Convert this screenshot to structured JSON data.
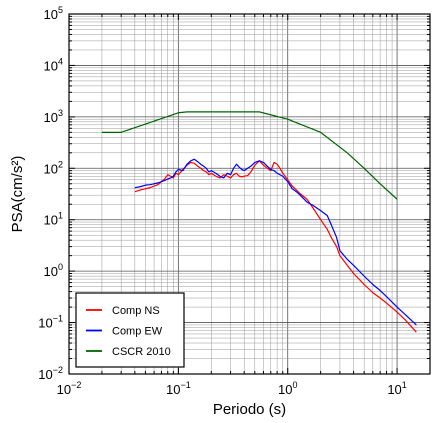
{
  "chart_data": {
    "type": "line",
    "title": "",
    "xlabel": "Periodo (s)",
    "ylabel": "PSA(cm/s²)",
    "xscale": "log",
    "yscale": "log",
    "xlim": [
      0.01,
      20
    ],
    "ylim": [
      0.01,
      100000
    ],
    "x_ticks": [
      {
        "base": "10",
        "exp": "−2",
        "value": 0.01
      },
      {
        "base": "10",
        "exp": "−1",
        "value": 0.1
      },
      {
        "base": "10",
        "exp": "0",
        "value": 1
      },
      {
        "base": "10",
        "exp": "1",
        "value": 10
      }
    ],
    "y_ticks": [
      {
        "base": "10",
        "exp": "−2",
        "value": 0.01
      },
      {
        "base": "10",
        "exp": "−1",
        "value": 0.1
      },
      {
        "base": "10",
        "exp": "0",
        "value": 1
      },
      {
        "base": "10",
        "exp": "1",
        "value": 10
      },
      {
        "base": "10",
        "exp": "2",
        "value": 100
      },
      {
        "base": "10",
        "exp": "3",
        "value": 1000
      },
      {
        "base": "10",
        "exp": "4",
        "value": 10000
      },
      {
        "base": "10",
        "exp": "5",
        "value": 100000
      }
    ],
    "grid": true,
    "legend_position": "bottom-left",
    "series": [
      {
        "name": "Comp NS",
        "color": "#ff0000",
        "points": [
          [
            0.04,
            35
          ],
          [
            0.045,
            38
          ],
          [
            0.05,
            40
          ],
          [
            0.055,
            42
          ],
          [
            0.06,
            45
          ],
          [
            0.065,
            48
          ],
          [
            0.07,
            55
          ],
          [
            0.075,
            62
          ],
          [
            0.08,
            75
          ],
          [
            0.085,
            70
          ],
          [
            0.09,
            65
          ],
          [
            0.095,
            80
          ],
          [
            0.1,
            75
          ],
          [
            0.11,
            95
          ],
          [
            0.12,
            115
          ],
          [
            0.13,
            130
          ],
          [
            0.14,
            125
          ],
          [
            0.15,
            110
          ],
          [
            0.16,
            100
          ],
          [
            0.17,
            90
          ],
          [
            0.18,
            85
          ],
          [
            0.19,
            75
          ],
          [
            0.2,
            80
          ],
          [
            0.22,
            70
          ],
          [
            0.24,
            65
          ],
          [
            0.26,
            75
          ],
          [
            0.28,
            70
          ],
          [
            0.3,
            65
          ],
          [
            0.32,
            75
          ],
          [
            0.34,
            80
          ],
          [
            0.36,
            70
          ],
          [
            0.38,
            68
          ],
          [
            0.4,
            70
          ],
          [
            0.43,
            72
          ],
          [
            0.46,
            85
          ],
          [
            0.5,
            115
          ],
          [
            0.55,
            140
          ],
          [
            0.6,
            115
          ],
          [
            0.65,
            100
          ],
          [
            0.7,
            90
          ],
          [
            0.75,
            130
          ],
          [
            0.8,
            120
          ],
          [
            0.85,
            100
          ],
          [
            0.9,
            80
          ],
          [
            1.0,
            60
          ],
          [
            1.1,
            45
          ],
          [
            1.2,
            38
          ],
          [
            1.3,
            32
          ],
          [
            1.5,
            25
          ],
          [
            1.7,
            17
          ],
          [
            2.0,
            10
          ],
          [
            2.3,
            6.5
          ],
          [
            2.5,
            4.5
          ],
          [
            2.8,
            3.0
          ],
          [
            3.0,
            2.0
          ],
          [
            3.5,
            1.3
          ],
          [
            4.0,
            0.9
          ],
          [
            5.0,
            0.55
          ],
          [
            6.0,
            0.38
          ],
          [
            7.0,
            0.3
          ],
          [
            8.0,
            0.24
          ],
          [
            10.0,
            0.16
          ],
          [
            12.0,
            0.11
          ],
          [
            15.0,
            0.065
          ]
        ]
      },
      {
        "name": "Comp EW",
        "color": "#0000ff",
        "points": [
          [
            0.04,
            42
          ],
          [
            0.045,
            44
          ],
          [
            0.05,
            47
          ],
          [
            0.055,
            48
          ],
          [
            0.06,
            50
          ],
          [
            0.065,
            52
          ],
          [
            0.07,
            55
          ],
          [
            0.075,
            58
          ],
          [
            0.08,
            62
          ],
          [
            0.085,
            65
          ],
          [
            0.09,
            70
          ],
          [
            0.095,
            85
          ],
          [
            0.1,
            95
          ],
          [
            0.11,
            90
          ],
          [
            0.12,
            120
          ],
          [
            0.13,
            140
          ],
          [
            0.14,
            150
          ],
          [
            0.15,
            135
          ],
          [
            0.16,
            120
          ],
          [
            0.17,
            110
          ],
          [
            0.18,
            100
          ],
          [
            0.19,
            85
          ],
          [
            0.2,
            90
          ],
          [
            0.22,
            80
          ],
          [
            0.24,
            70
          ],
          [
            0.26,
            65
          ],
          [
            0.28,
            80
          ],
          [
            0.3,
            75
          ],
          [
            0.32,
            100
          ],
          [
            0.34,
            120
          ],
          [
            0.36,
            105
          ],
          [
            0.38,
            95
          ],
          [
            0.4,
            90
          ],
          [
            0.43,
            100
          ],
          [
            0.46,
            110
          ],
          [
            0.5,
            130
          ],
          [
            0.55,
            140
          ],
          [
            0.6,
            130
          ],
          [
            0.65,
            110
          ],
          [
            0.7,
            95
          ],
          [
            0.75,
            90
          ],
          [
            0.8,
            80
          ],
          [
            0.85,
            75
          ],
          [
            0.9,
            70
          ],
          [
            1.0,
            55
          ],
          [
            1.1,
            40
          ],
          [
            1.2,
            35
          ],
          [
            1.3,
            30
          ],
          [
            1.5,
            22
          ],
          [
            1.7,
            19
          ],
          [
            2.0,
            15
          ],
          [
            2.3,
            12
          ],
          [
            2.5,
            8
          ],
          [
            2.8,
            4.5
          ],
          [
            3.0,
            2.5
          ],
          [
            3.5,
            1.7
          ],
          [
            4.0,
            1.3
          ],
          [
            5.0,
            0.8
          ],
          [
            6.0,
            0.55
          ],
          [
            7.0,
            0.42
          ],
          [
            8.0,
            0.32
          ],
          [
            10.0,
            0.2
          ],
          [
            12.0,
            0.14
          ],
          [
            15.0,
            0.09
          ]
        ]
      },
      {
        "name": "CSCR 2010",
        "color": "#006400",
        "points": [
          [
            0.02,
            500
          ],
          [
            0.03,
            500
          ],
          [
            0.1,
            1200
          ],
          [
            0.12,
            1250
          ],
          [
            0.55,
            1250
          ],
          [
            1.0,
            900
          ],
          [
            2.0,
            500
          ],
          [
            3.5,
            200
          ],
          [
            5.0,
            100
          ],
          [
            7.0,
            50
          ],
          [
            10.0,
            25
          ]
        ]
      }
    ]
  }
}
